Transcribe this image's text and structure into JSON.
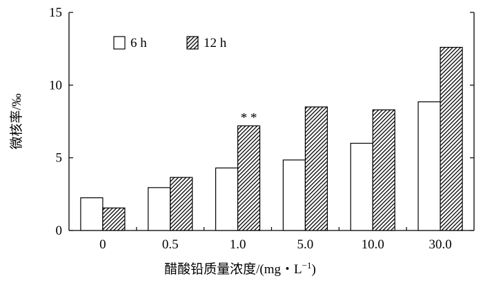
{
  "chart_data": {
    "type": "bar",
    "categories": [
      "0",
      "0.5",
      "1.0",
      "5.0",
      "10.0",
      "30.0"
    ],
    "series": [
      {
        "name": "6 h",
        "values": [
          2.25,
          2.95,
          4.3,
          4.85,
          6.0,
          8.85
        ],
        "fill": "#ffffff"
      },
      {
        "name": "12 h",
        "values": [
          1.55,
          3.65,
          7.2,
          8.5,
          8.3,
          12.6
        ],
        "fill": "hatched"
      }
    ],
    "ylim": [
      0,
      15
    ],
    "yticks": [
      "0",
      "5",
      "10",
      "15"
    ],
    "ylabel": "微核率/‰",
    "xlabel_main": "醋酸铅质量浓度/(mg・L",
    "xlabel_sup": "−1",
    "xlabel_close": ")",
    "annotations": [
      {
        "category": "1.0",
        "series": "12 h",
        "text": "* *"
      }
    ],
    "legend_position": "top-left",
    "grid": false
  }
}
